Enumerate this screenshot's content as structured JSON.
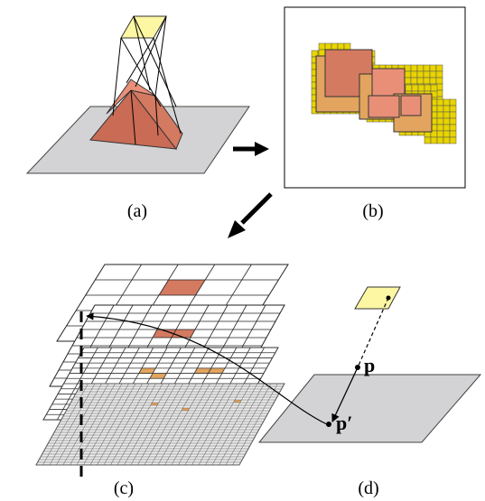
{
  "panels": {
    "a": {
      "label": "(a)"
    },
    "b": {
      "label": "(b)"
    },
    "c": {
      "label": "(c)"
    },
    "d": {
      "label": "(d)",
      "point_p": "p",
      "point_p_prime": "p′"
    }
  },
  "colors": {
    "plane_gray": "#d3d3d5",
    "light_yellow": "#fdf7a3",
    "salmon": "#e98f78",
    "dark_salmon": "#c96b55",
    "mid_salmon": "#d47a61",
    "tan": "#e2a45f",
    "yellow_border": "#e8d400",
    "dark_grid": "#555555"
  }
}
